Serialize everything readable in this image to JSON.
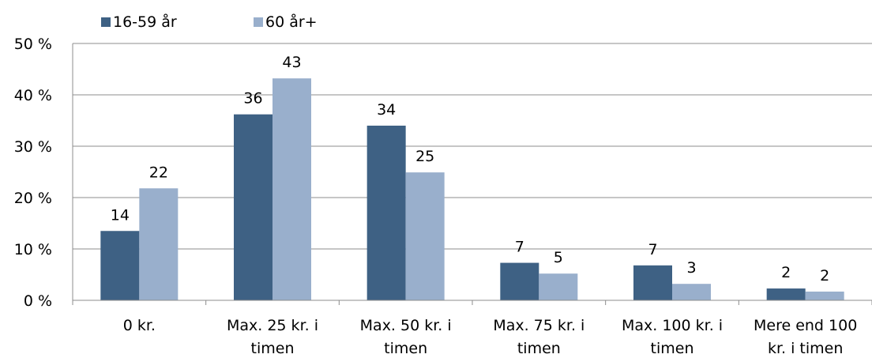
{
  "chart_data": {
    "type": "bar",
    "categories": [
      [
        "0 kr."
      ],
      [
        "Max. 25 kr. i",
        "timen"
      ],
      [
        "Max. 50 kr. i",
        "timen"
      ],
      [
        "Max. 75 kr. i",
        "timen"
      ],
      [
        "Max. 100 kr. i",
        "timen"
      ],
      [
        "Mere end 100",
        "kr. i timen"
      ]
    ],
    "series": [
      {
        "name": "16-59 år",
        "color": "#3e6184",
        "values": [
          13.5,
          36.2,
          34.0,
          7.3,
          6.8,
          2.3
        ],
        "labels": [
          "14",
          "36",
          "34",
          "7",
          "7",
          "2"
        ]
      },
      {
        "name": "60 år+",
        "color": "#99afcc",
        "values": [
          21.8,
          43.2,
          24.9,
          5.2,
          3.2,
          1.7
        ],
        "labels": [
          "22",
          "43",
          "25",
          "5",
          "3",
          "2"
        ]
      }
    ],
    "ylim": [
      0,
      50
    ],
    "yticks": [
      0,
      10,
      20,
      30,
      40,
      50
    ],
    "ytick_labels": [
      "0 %",
      "10 %",
      "20 %",
      "30 %",
      "40 %",
      "50 %"
    ],
    "grid": true,
    "legend_position": "top-left"
  }
}
